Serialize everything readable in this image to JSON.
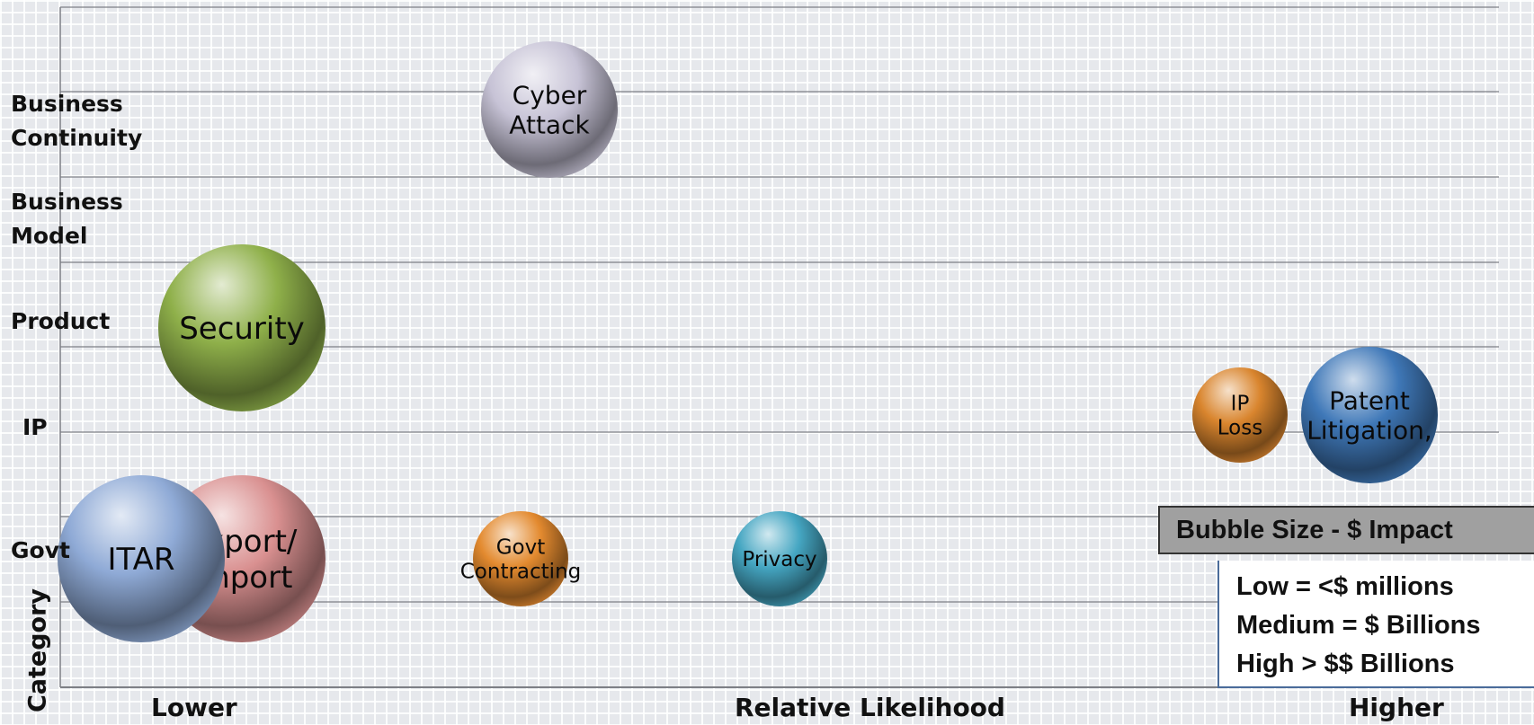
{
  "chart_data": {
    "type": "bubble",
    "ylabel": "Category",
    "xlabel": "Relative Likelihood",
    "x_tick_labels": {
      "low": "Lower",
      "mid": "Relative Likelihood",
      "high": "Higher"
    },
    "row_labels": [
      "Business\nContinuity",
      "Business\nModel",
      "Product",
      "IP",
      "Govt"
    ],
    "bubble_size_legend": {
      "title": "Bubble Size - $ Impact",
      "items": [
        "Low = <$ millions",
        "Medium = $ Billions",
        "High > $$ Billions"
      ]
    },
    "bubbles": [
      {
        "label": [
          "Cyber",
          "Attack"
        ],
        "category": "Business Continuity",
        "likelihood": 0.34,
        "impact": "Medium",
        "color": "#c7c3d6"
      },
      {
        "label": [
          "Security"
        ],
        "category": "Product",
        "likelihood": 0.12,
        "impact": "High",
        "color": "#8fb04a"
      },
      {
        "label": [
          "IP",
          "Loss"
        ],
        "category": "IP",
        "likelihood": 0.82,
        "impact": "Low",
        "color": "#d9852e"
      },
      {
        "label": [
          "Patent",
          "Litigation,"
        ],
        "category": "IP",
        "likelihood": 0.91,
        "impact": "Medium",
        "color": "#3f78b8"
      },
      {
        "label": [
          "Export/",
          "Import"
        ],
        "category": "Govt",
        "likelihood": 0.12,
        "impact": "High",
        "color": "#d99090"
      },
      {
        "label": [
          "ITAR"
        ],
        "category": "Govt",
        "likelihood": 0.05,
        "impact": "High",
        "color": "#8faad6"
      },
      {
        "label": [
          "Govt",
          "Contracting"
        ],
        "category": "Govt",
        "likelihood": 0.32,
        "impact": "Low",
        "color": "#e38a2f"
      },
      {
        "label": [
          "Privacy"
        ],
        "category": "Govt",
        "likelihood": 0.5,
        "impact": "Low",
        "color": "#45a6c2"
      }
    ]
  }
}
